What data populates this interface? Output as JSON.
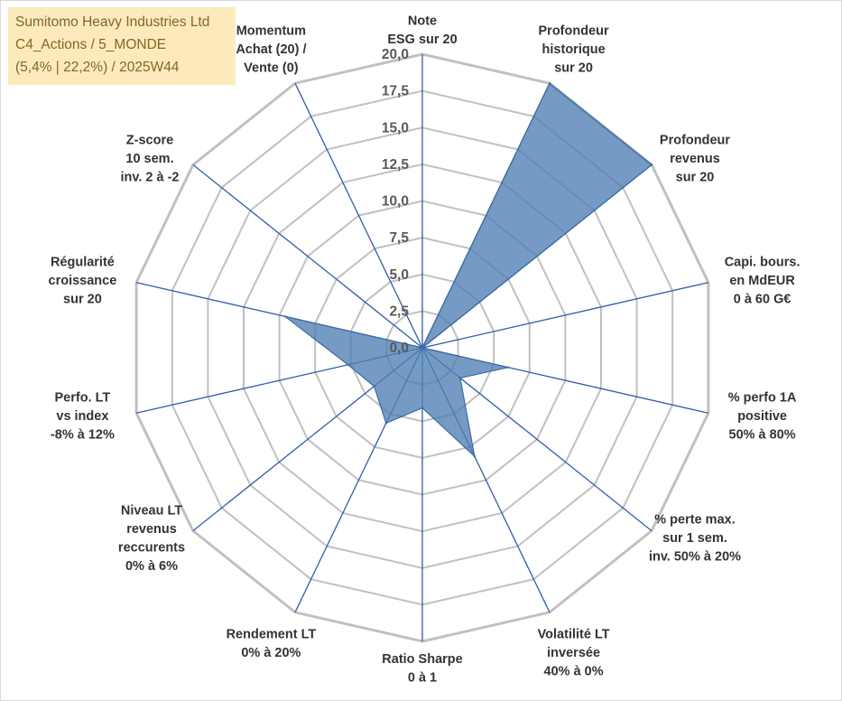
{
  "title_box": {
    "line1": "Sumitomo Heavy Industries Ltd",
    "line2": "C4_Actions / 5_MONDE",
    "line3": "(5,4% | 22,2%) / 2025W44"
  },
  "chart_data": {
    "type": "radar",
    "rmin": 0,
    "rmax": 20,
    "tick_step": 2.5,
    "tick_labels": [
      "0,0",
      "2,5",
      "5,0",
      "7,5",
      "10,0",
      "12,5",
      "15,0",
      "17,5",
      "20,0"
    ],
    "axes": [
      [
        "Note",
        "ESG sur 20"
      ],
      [
        "Profondeur",
        "historique",
        "sur 20"
      ],
      [
        "Profondeur",
        "revenus",
        "sur 20"
      ],
      [
        "Capi. bours.",
        "en MdEUR",
        "0 à 60 G€"
      ],
      [
        "% perfo 1A",
        "positive",
        "50% à 80%"
      ],
      [
        "% perte max.",
        "sur 1 sem.",
        "inv. 50% à 20%"
      ],
      [
        "Volatilité LT",
        "inversée",
        "40% à 0%"
      ],
      [
        "Ratio Sharpe",
        "0 à 1"
      ],
      [
        "Rendement LT",
        "0% à 20%"
      ],
      [
        "Niveau LT",
        "revenus",
        "reccurents",
        "0% à 6%"
      ],
      [
        "Perfo. LT",
        "vs index",
        "-8% à 12%"
      ],
      [
        "Régularité",
        "croissance",
        "sur 20"
      ],
      [
        "Z-score",
        "10 sem.",
        "inv. 2 à -2"
      ],
      [
        "Momentum",
        "Achat (20) /",
        "Vente (0)"
      ]
    ],
    "series": [
      {
        "values": [
          0,
          20,
          20,
          0,
          6,
          3.3,
          8.2,
          4.1,
          5.7,
          4.2,
          5.2,
          9.6,
          0,
          0
        ],
        "color": "#4e7fb4",
        "fill_opacity": 0.78
      }
    ],
    "grid": true,
    "grid_color": "#c0c0c0",
    "spoke_color": "#2f5fa8"
  }
}
